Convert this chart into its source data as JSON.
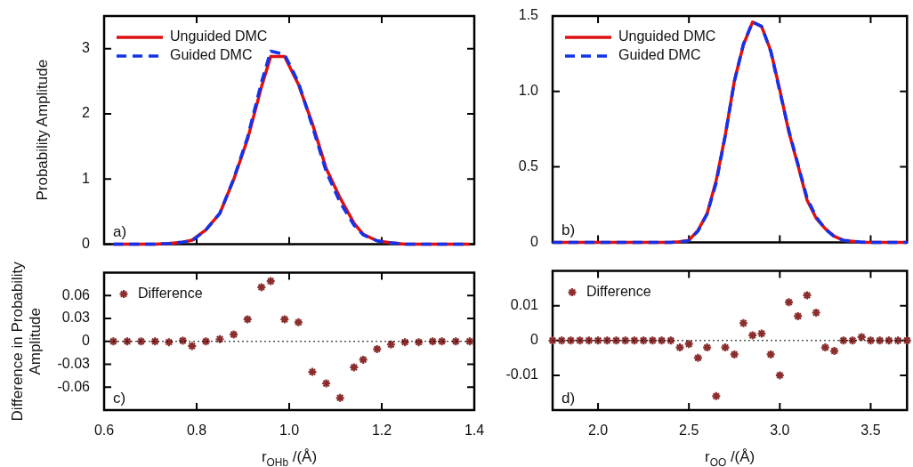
{
  "chart_data": [
    {
      "type": "line",
      "ylabel": "Probability Amplitude",
      "annotations": [
        "a)"
      ],
      "legend": "top left",
      "tick_labels": "y",
      "marker": "none",
      "x": [
        0.62,
        0.65,
        0.68,
        0.71,
        0.74,
        0.77,
        0.79,
        0.82,
        0.85,
        0.88,
        0.91,
        0.94,
        0.96,
        0.99,
        1.02,
        1.05,
        1.08,
        1.11,
        1.14,
        1.16,
        1.19,
        1.22,
        1.25,
        1.28,
        1.31,
        1.33,
        1.36,
        1.39
      ],
      "xlim": [
        0.6,
        1.4
      ],
      "xticks": [
        0.6,
        0.8,
        1,
        1.2,
        1.4
      ],
      "ylim": [
        0,
        3.5
      ],
      "yticks": [
        0,
        1,
        2,
        3
      ],
      "series": [
        {
          "name": "Unguided DMC",
          "color": "#dd1111",
          "line_style": "solid",
          "values": [
            0,
            0,
            0,
            0,
            0.01,
            0.03,
            0.06,
            0.22,
            0.47,
            0.99,
            1.61,
            2.41,
            2.88,
            2.88,
            2.45,
            1.85,
            1.16,
            0.71,
            0.32,
            0.15,
            0.05,
            0.02,
            0,
            0,
            0,
            0,
            0,
            0
          ]
        },
        {
          "name": "Guided DMC",
          "color": "#1133ee",
          "line_style": "dashed",
          "values": [
            0,
            0,
            0,
            0,
            0.01,
            0.03,
            0.05,
            0.22,
            0.47,
            1.0,
            1.64,
            2.48,
            2.96,
            2.91,
            2.48,
            1.81,
            1.11,
            0.64,
            0.29,
            0.14,
            0.05,
            0.02,
            0,
            0,
            0,
            0,
            0,
            0
          ]
        }
      ]
    },
    {
      "type": "line",
      "annotations": [
        "b)"
      ],
      "legend": "top left",
      "tick_labels": "y",
      "marker": "none",
      "x": [
        1.75,
        1.8,
        1.85,
        1.9,
        1.95,
        2.0,
        2.05,
        2.1,
        2.15,
        2.2,
        2.25,
        2.3,
        2.35,
        2.4,
        2.45,
        2.5,
        2.55,
        2.6,
        2.65,
        2.7,
        2.75,
        2.8,
        2.85,
        2.9,
        2.95,
        3.0,
        3.05,
        3.1,
        3.15,
        3.2,
        3.25,
        3.3,
        3.35,
        3.4,
        3.45,
        3.5,
        3.55,
        3.6,
        3.65,
        3.7
      ],
      "xlim": [
        1.75,
        3.7
      ],
      "xticks": [
        2,
        2.5,
        3,
        3.5
      ],
      "ylim": [
        0,
        1.5
      ],
      "yticks": [
        0,
        0.5,
        {
          "value": 1,
          "label": "1.0"
        },
        1.5
      ],
      "series": [
        {
          "name": "Unguided DMC",
          "color": "#dd1111",
          "line_style": "solid",
          "values": [
            0,
            0,
            0,
            0,
            0,
            0,
            0,
            0,
            0,
            0,
            0,
            0,
            0,
            0,
            0.004,
            0.013,
            0.08,
            0.19,
            0.41,
            0.71,
            1.07,
            1.31,
            1.46,
            1.43,
            1.27,
            1.01,
            0.73,
            0.51,
            0.28,
            0.16,
            0.09,
            0.04,
            0.013,
            0.007,
            0,
            0,
            0,
            0,
            0,
            0
          ]
        },
        {
          "name": "Guided DMC",
          "color": "#1133ee",
          "line_style": "dashed",
          "values": [
            0,
            0,
            0,
            0,
            0,
            0,
            0,
            0,
            0,
            0,
            0,
            0,
            0,
            0,
            0.002,
            0.012,
            0.075,
            0.188,
            0.394,
            0.708,
            1.066,
            1.315,
            1.46,
            1.432,
            1.266,
            1.0,
            0.741,
            0.517,
            0.293,
            0.168,
            0.088,
            0.037,
            0.013,
            0.007,
            0.001,
            0,
            0,
            0,
            0,
            0
          ]
        }
      ]
    },
    {
      "type": "scatter",
      "xlabel": "r$_{OHb}$ /(Å)",
      "ylabel": "Difference in Probability Amplitude",
      "annotations": [
        "c)"
      ],
      "legend": "top left",
      "marker": "cross",
      "x": [
        0.62,
        0.65,
        0.68,
        0.71,
        0.74,
        0.77,
        0.79,
        0.82,
        0.85,
        0.88,
        0.91,
        0.94,
        0.96,
        0.99,
        1.02,
        1.05,
        1.08,
        1.11,
        1.14,
        1.16,
        1.19,
        1.22,
        1.25,
        1.28,
        1.31,
        1.33,
        1.36,
        1.39
      ],
      "xlim": [
        0.6,
        1.4
      ],
      "xticks": [
        0.6,
        0.8,
        {
          "value": 1,
          "label": "1.0"
        },
        1.2,
        1.4
      ],
      "ylim": [
        -0.09,
        0.09
      ],
      "yticks": [
        -0.06,
        -0.03,
        0,
        0.03,
        0.06
      ],
      "ref_lines": [
        {
          "axis": "y",
          "value": 0,
          "line_style": "dotted",
          "color": "#000000"
        }
      ],
      "series": [
        {
          "name": "Difference",
          "color": "#8b2d2d",
          "values": [
            0,
            0,
            0,
            0,
            -0.001,
            0.001,
            -0.006,
            0,
            0.003,
            0.009,
            0.029,
            0.071,
            0.079,
            0.029,
            0.025,
            -0.04,
            -0.055,
            -0.074,
            -0.034,
            -0.024,
            -0.01,
            -0.004,
            -0.001,
            -0.001,
            0,
            0,
            0,
            0
          ]
        }
      ]
    },
    {
      "type": "scatter",
      "xlabel": "r$_{OO}$ /(Å)",
      "annotations": [
        "d)"
      ],
      "legend": "top left",
      "marker": "cross",
      "x": [
        1.75,
        1.8,
        1.85,
        1.9,
        1.95,
        2.0,
        2.05,
        2.1,
        2.15,
        2.2,
        2.25,
        2.3,
        2.35,
        2.4,
        2.45,
        2.5,
        2.55,
        2.6,
        2.65,
        2.7,
        2.75,
        2.8,
        2.85,
        2.9,
        2.95,
        3.0,
        3.05,
        3.1,
        3.15,
        3.2,
        3.25,
        3.3,
        3.35,
        3.4,
        3.45,
        3.5,
        3.55,
        3.6,
        3.65,
        3.7
      ],
      "xlim": [
        1.75,
        3.7
      ],
      "xticks": [
        {
          "value": 2,
          "label": "2.0"
        },
        2.5,
        {
          "value": 3,
          "label": "3.0"
        },
        3.5
      ],
      "ylim": [
        -0.02,
        0.02
      ],
      "yticks": [
        -0.01,
        0,
        0.01
      ],
      "ref_lines": [
        {
          "axis": "y",
          "value": 0,
          "line_style": "dotted",
          "color": "#000000"
        }
      ],
      "series": [
        {
          "name": "Difference",
          "color": "#8b2d2d",
          "values": [
            0,
            0,
            0,
            0,
            0,
            0,
            0,
            0,
            0,
            0,
            0,
            0,
            0,
            0,
            -0.002,
            -0.001,
            -0.005,
            -0.002,
            -0.016,
            -0.002,
            -0.004,
            0.005,
            0.0015,
            0.002,
            -0.004,
            -0.01,
            0.011,
            0.007,
            0.013,
            0.008,
            -0.002,
            -0.003,
            0,
            0,
            0.001,
            0,
            0,
            0,
            0,
            0
          ]
        }
      ]
    }
  ]
}
